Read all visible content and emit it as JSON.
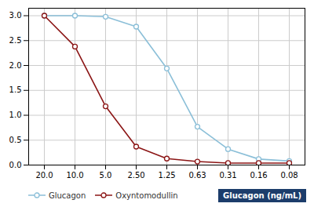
{
  "chart_data": {
    "type": "line",
    "xlabel": "Glucagon (ng/mL)",
    "categories": [
      "20.0",
      "10.0",
      "5.0",
      "2.50",
      "1.25",
      "0.63",
      "0.31",
      "0.16",
      "0.08"
    ],
    "series": [
      {
        "name": "Glucagon",
        "color": "#8bbfd8",
        "values": [
          3.0,
          3.0,
          2.98,
          2.78,
          1.94,
          0.77,
          0.32,
          0.12,
          0.08
        ]
      },
      {
        "name": "Oxyntomodullin",
        "color": "#8b1515",
        "values": [
          3.0,
          2.38,
          1.18,
          0.37,
          0.13,
          0.07,
          0.04,
          0.04,
          0.04
        ]
      }
    ],
    "ylim": [
      0.0,
      3.15
    ],
    "yticks": [
      {
        "value": 0.0,
        "label": "0.0"
      },
      0.5,
      {
        "value": 1.0,
        "label": "1.0"
      },
      1.5,
      {
        "value": 2.0,
        "label": "2.0"
      },
      2.5,
      {
        "value": 3.0,
        "label": "3.0"
      }
    ],
    "grid": true,
    "marker": "circle",
    "legend": "bottom"
  }
}
